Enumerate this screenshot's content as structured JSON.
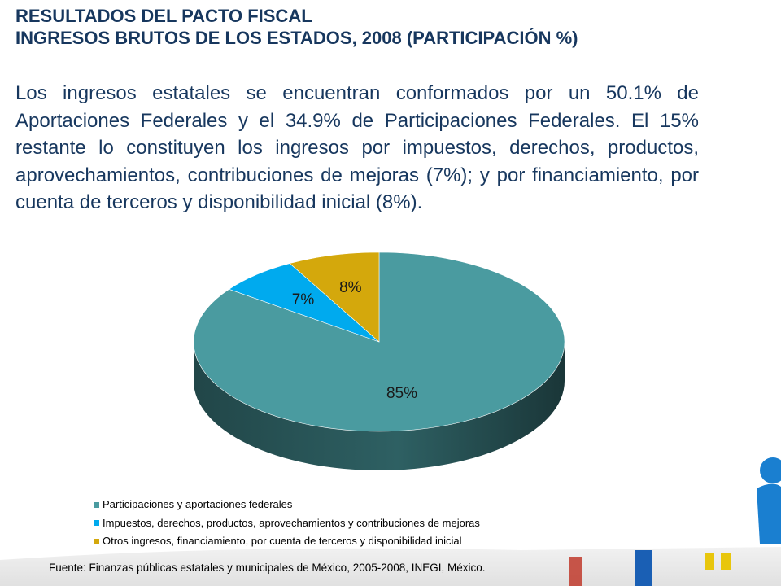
{
  "header": {
    "title_line1": "RESULTADOS DEL PACTO FISCAL",
    "title_line2": "INGRESOS BRUTOS DE LOS ESTADOS, 2008 (PARTICIPACIÓN %)"
  },
  "body_text": "Los ingresos estatales se encuentran conformados por un 50.1% de Aportaciones Federales y el 34.9% de Participaciones Federales. El 15% restante lo constituyen los ingresos por impuestos, derechos, productos, aprovechamientos, contribuciones de mejoras (7%); y por financiamiento, por cuenta de terceros y disponibilidad inicial (8%).",
  "chart_data": {
    "type": "pie",
    "style": "3d",
    "categories": [
      "Participaciones y aportaciones federales",
      "Impuestos, derechos, productos, aprovechamientos y contribuciones de mejoras",
      "Otros ingresos, financiamiento, por cuenta de terceros y disponibilidad inicial"
    ],
    "values": [
      85,
      7,
      8
    ],
    "data_labels": [
      "85%",
      "7%",
      "8%"
    ],
    "colors": [
      "#4a9ba0",
      "#00aaee",
      "#d4a80c"
    ],
    "legend_position": "bottom-left"
  },
  "source": "Fuente: Finanzas públicas estatales y municipales de México, 2005-2008, INEGI, México."
}
